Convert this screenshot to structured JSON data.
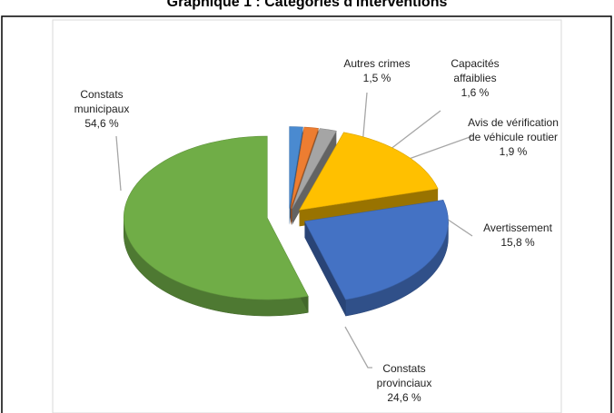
{
  "chart_data": {
    "type": "pie",
    "title": "Graphique 1 : Catégories d'interventions",
    "categories": [
      "Autres crimes",
      "Capacités affaiblies",
      "Avis de vérification de véhicule routier",
      "Avertissement",
      "Constats provinciaux",
      "Constats municipaux"
    ],
    "values": [
      1.5,
      1.6,
      1.9,
      15.8,
      24.6,
      54.6
    ],
    "value_labels": [
      "1,5 %",
      "1,6 %",
      "1,9 %",
      "15,8 %",
      "24,6 %",
      "54,6 %"
    ],
    "colors": [
      "#4a8ad0",
      "#ed7d31",
      "#a5a5a5",
      "#ffc000",
      "#4472c4",
      "#70ad47"
    ]
  }
}
